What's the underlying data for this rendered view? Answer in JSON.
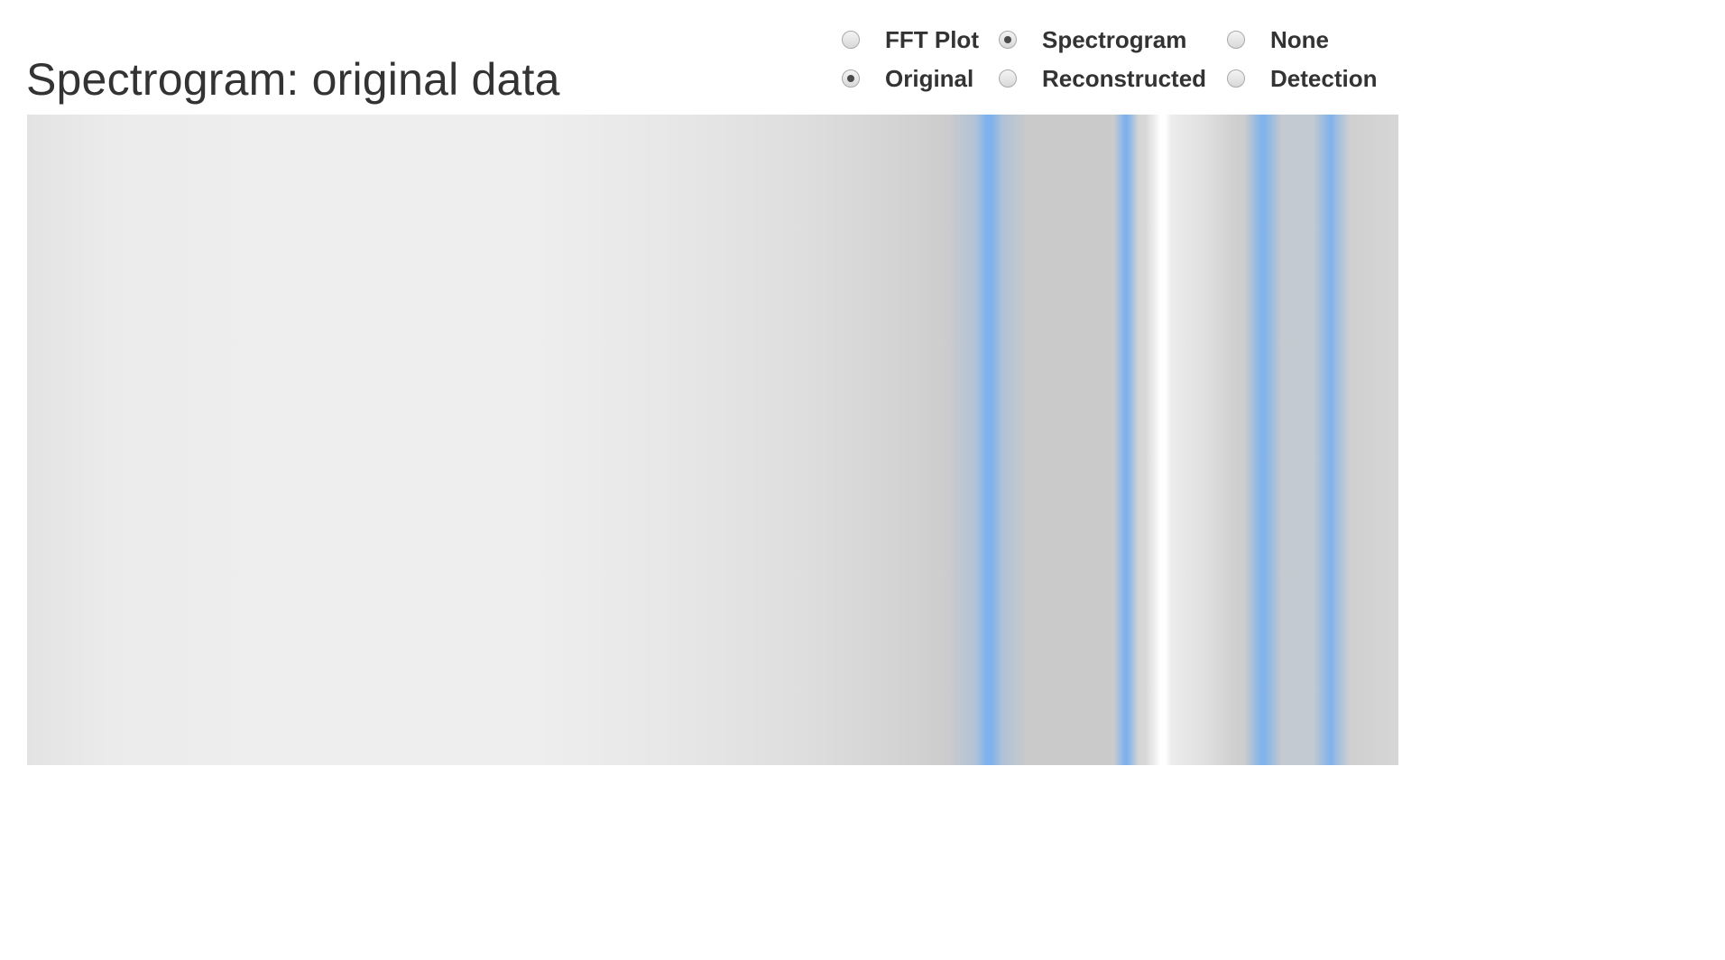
{
  "page": {
    "title": "Spectrogram: original data"
  },
  "view_options": [
    {
      "label": "FFT Plot",
      "checked": false
    },
    {
      "label": "Spectrogram",
      "checked": true
    },
    {
      "label": "None",
      "checked": false
    }
  ],
  "data_options": [
    {
      "label": "Original",
      "checked": true
    },
    {
      "label": "Reconstructed",
      "checked": false
    },
    {
      "label": "Detection",
      "checked": false
    }
  ],
  "colors": {
    "band_accent": "#7fb2ec",
    "background_gray": "#eeeeee",
    "text": "#333333"
  }
}
